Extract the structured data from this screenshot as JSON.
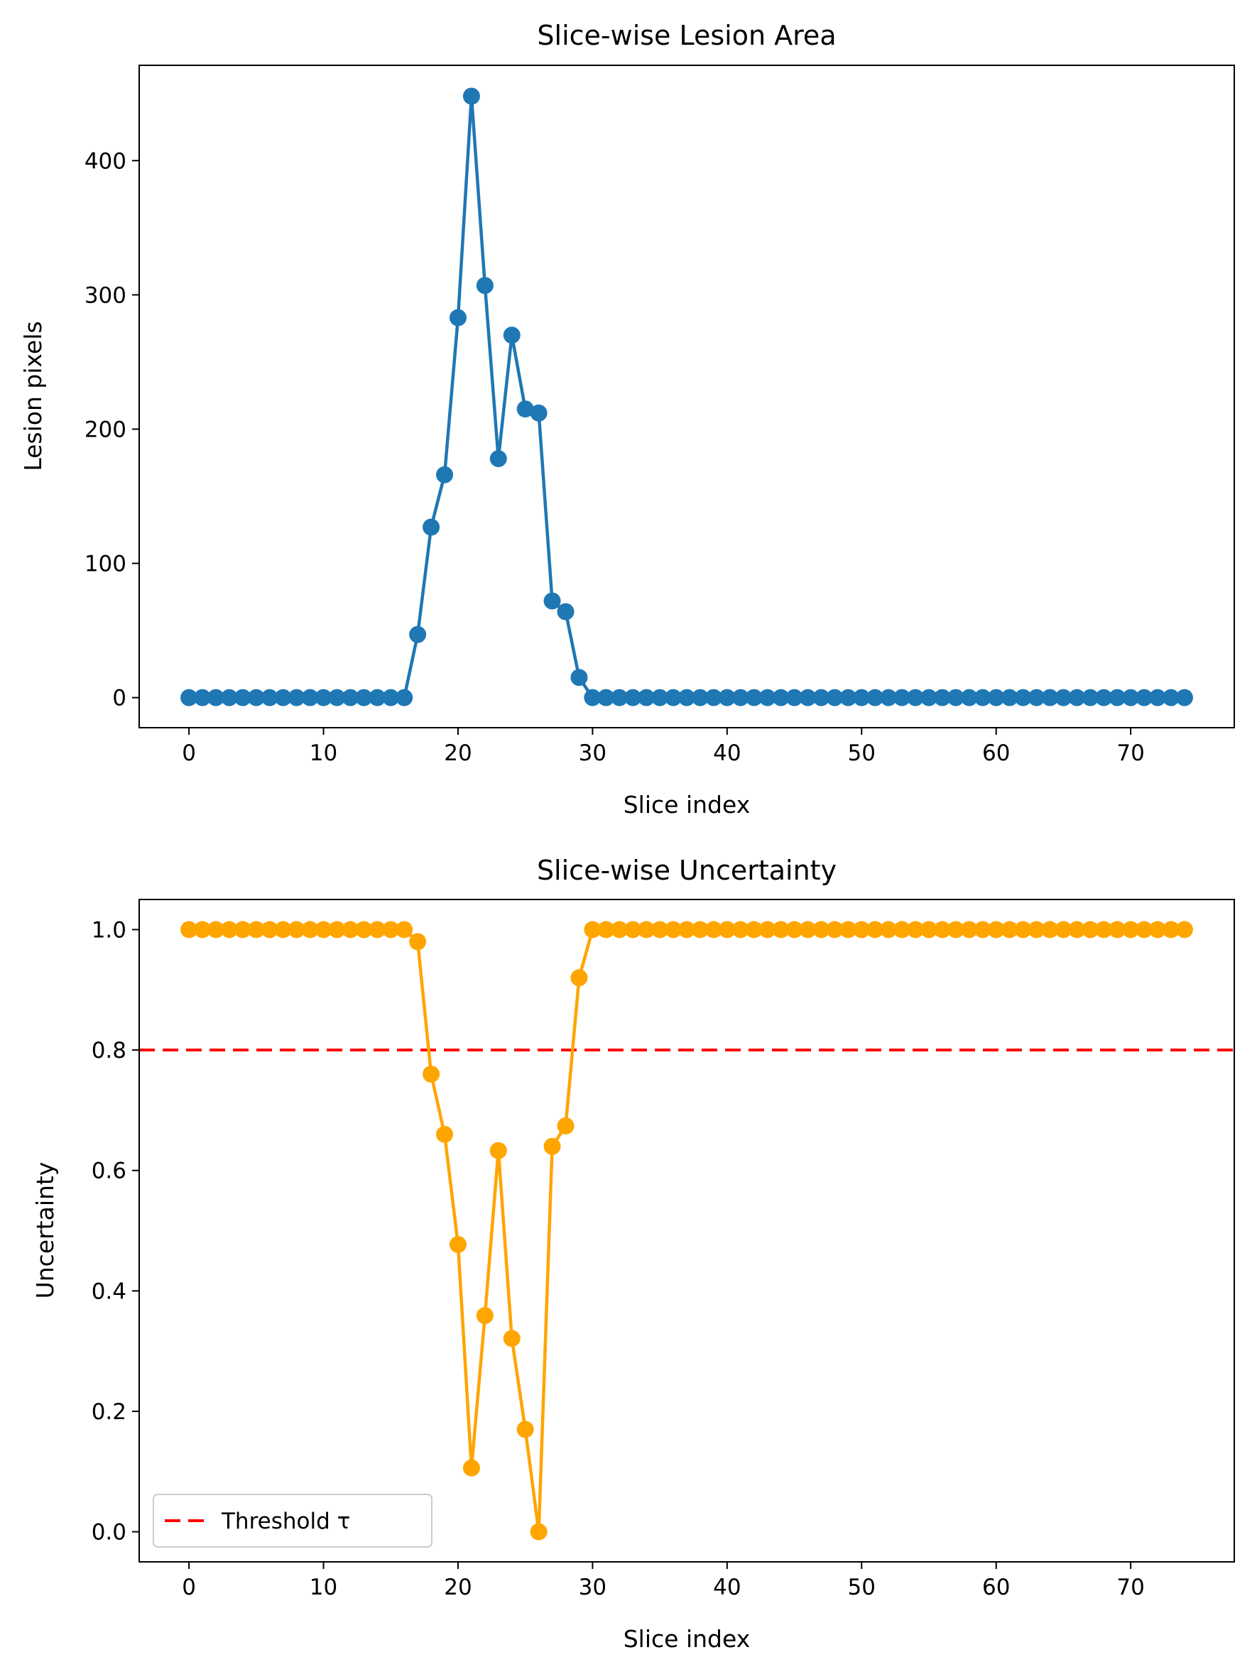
{
  "chart_data": [
    {
      "type": "line",
      "title": "Slice-wise Lesion Area",
      "xlabel": "Slice index",
      "ylabel": "Lesion pixels",
      "xlim": [
        -3.7,
        77.7
      ],
      "ylim": [
        -22.4,
        471
      ],
      "xticks": [
        0,
        10,
        20,
        30,
        40,
        50,
        60,
        70
      ],
      "yticks": [
        0,
        100,
        200,
        300,
        400
      ],
      "grid": false,
      "color": "#1f77b4",
      "marker": "circle",
      "x_start": 0,
      "values": [
        0,
        0,
        0,
        0,
        0,
        0,
        0,
        0,
        0,
        0,
        0,
        0,
        0,
        0,
        0,
        0,
        0,
        47,
        127,
        166,
        283,
        448,
        307,
        178,
        270,
        215,
        212,
        72,
        64,
        15,
        0,
        0,
        0,
        0,
        0,
        0,
        0,
        0,
        0,
        0,
        0,
        0,
        0,
        0,
        0,
        0,
        0,
        0,
        0,
        0,
        0,
        0,
        0,
        0,
        0,
        0,
        0,
        0,
        0,
        0,
        0,
        0,
        0,
        0,
        0,
        0,
        0,
        0,
        0,
        0,
        0,
        0,
        0,
        0,
        0
      ]
    },
    {
      "type": "line",
      "title": "Slice-wise Uncertainty",
      "xlabel": "Slice index",
      "ylabel": "Uncertainty",
      "xlim": [
        -3.7,
        77.7
      ],
      "ylim": [
        -0.05,
        1.05
      ],
      "xticks": [
        0,
        10,
        20,
        30,
        40,
        50,
        60,
        70
      ],
      "yticks": [
        0.0,
        0.2,
        0.4,
        0.6,
        0.8,
        1.0
      ],
      "grid": false,
      "color": "#ffa500",
      "marker": "circle",
      "x_start": 0,
      "values": [
        1,
        1,
        1,
        1,
        1,
        1,
        1,
        1,
        1,
        1,
        1,
        1,
        1,
        1,
        1,
        1,
        1,
        0.98,
        0.76,
        0.66,
        0.477,
        0.106,
        0.359,
        0.633,
        0.321,
        0.17,
        0.0,
        0.64,
        0.674,
        0.92,
        1,
        1,
        1,
        1,
        1,
        1,
        1,
        1,
        1,
        1,
        1,
        1,
        1,
        1,
        1,
        1,
        1,
        1,
        1,
        1,
        1,
        1,
        1,
        1,
        1,
        1,
        1,
        1,
        1,
        1,
        1,
        1,
        1,
        1,
        1,
        1,
        1,
        1,
        1,
        1,
        1,
        1,
        1,
        1,
        1
      ],
      "threshold": {
        "value": 0.8,
        "name": "Threshold τ",
        "color": "#ff0000",
        "style": "dashed"
      },
      "legend": {
        "position": "lower-left",
        "entries": [
          "Threshold τ"
        ]
      }
    }
  ]
}
